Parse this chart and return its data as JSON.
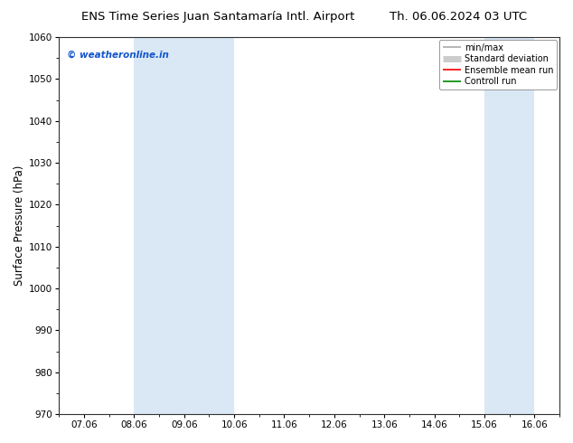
{
  "title_left": "ENS Time Series Juan Santamaría Intl. Airport",
  "title_right": "Th. 06.06.2024 03 UTC",
  "ylabel": "Surface Pressure (hPa)",
  "ylim": [
    970,
    1060
  ],
  "yticks": [
    970,
    980,
    990,
    1000,
    1010,
    1020,
    1030,
    1040,
    1050,
    1060
  ],
  "xtick_labels": [
    "07.06",
    "08.06",
    "09.06",
    "10.06",
    "11.06",
    "12.06",
    "13.06",
    "14.06",
    "15.06",
    "16.06"
  ],
  "xtick_positions": [
    0,
    1,
    2,
    3,
    4,
    5,
    6,
    7,
    8,
    9
  ],
  "shaded_bands": [
    {
      "xmin": 1,
      "xmax": 3,
      "color": "#dae8f5"
    },
    {
      "xmin": 8,
      "xmax": 9,
      "color": "#dae8f5"
    }
  ],
  "watermark": "© weatheronline.in",
  "watermark_color": "#1155cc",
  "background_color": "#ffffff",
  "plot_bg_color": "#ffffff",
  "legend_items": [
    {
      "label": "min/max",
      "color": "#aaaaaa",
      "lw": 1.2
    },
    {
      "label": "Standard deviation",
      "color": "#cccccc",
      "lw": 5
    },
    {
      "label": "Ensemble mean run",
      "color": "#ff0000",
      "lw": 1.2
    },
    {
      "label": "Controll run",
      "color": "#008800",
      "lw": 1.2
    }
  ],
  "figsize": [
    6.34,
    4.9
  ],
  "dpi": 100
}
